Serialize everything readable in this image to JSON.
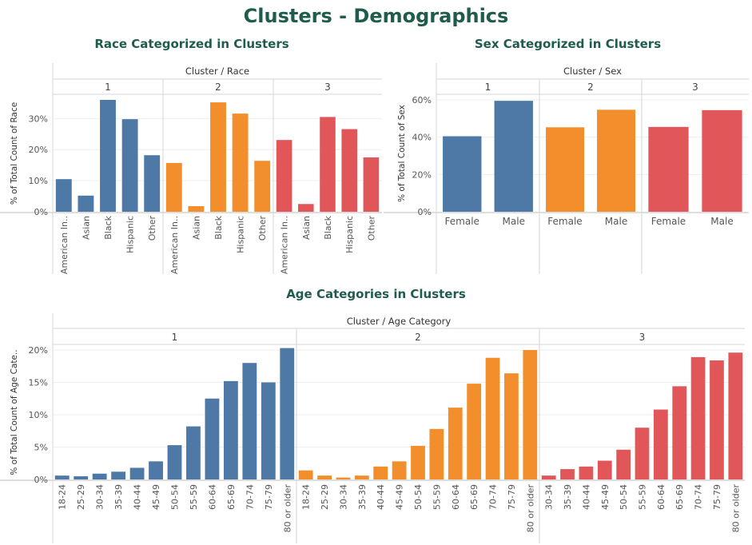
{
  "dashboard": {
    "title": "Clusters - Demographics",
    "colors": {
      "1": "#4e79a7",
      "2": "#f28e2b",
      "3": "#e15759"
    }
  },
  "chart_data": [
    {
      "id": "race",
      "type": "bar",
      "title": "Race Categorized in Clusters",
      "header": "Cluster / Race",
      "ylabel": "% of Total Count of Race",
      "ylim": [
        0,
        36
      ],
      "yticks": [
        0,
        10,
        20,
        30
      ],
      "tick_format": "pct",
      "panels": [
        {
          "cluster": "1",
          "categories": [
            "American In..",
            "Asian",
            "Black",
            "Hispanic",
            "Other"
          ],
          "values": [
            10.5,
            5.2,
            36.0,
            29.8,
            18.2
          ]
        },
        {
          "cluster": "2",
          "categories": [
            "American In..",
            "Asian",
            "Black",
            "Hispanic",
            "Other"
          ],
          "values": [
            15.7,
            1.8,
            35.2,
            31.6,
            16.4
          ]
        },
        {
          "cluster": "3",
          "categories": [
            "American In..",
            "Asian",
            "Black",
            "Hispanic",
            "Other"
          ],
          "values": [
            23.1,
            2.5,
            30.5,
            26.6,
            17.5
          ]
        }
      ]
    },
    {
      "id": "sex",
      "type": "bar",
      "title": "Sex Categorized in Clusters",
      "header": "Cluster / Sex",
      "ylabel": "% of Total Count of Sex",
      "ylim": [
        0,
        60
      ],
      "yticks": [
        0,
        20,
        40,
        60
      ],
      "tick_format": "pct",
      "panels": [
        {
          "cluster": "1",
          "categories": [
            "Female",
            "Male"
          ],
          "values": [
            40.5,
            59.5
          ]
        },
        {
          "cluster": "2",
          "categories": [
            "Female",
            "Male"
          ],
          "values": [
            45.3,
            54.7
          ]
        },
        {
          "cluster": "3",
          "categories": [
            "Female",
            "Male"
          ],
          "values": [
            45.5,
            54.5
          ]
        }
      ]
    },
    {
      "id": "age",
      "type": "bar",
      "title": "Age Categories in Clusters",
      "header": "Cluster / Age Category",
      "ylabel": "% of Total Count of Age Cate..",
      "ylim": [
        0,
        20
      ],
      "yticks": [
        0,
        5,
        10,
        15,
        20
      ],
      "tick_format": "pct",
      "panels": [
        {
          "cluster": "1",
          "categories": [
            "18-24",
            "25-29",
            "30-34",
            "35-39",
            "40-44",
            "45-49",
            "50-54",
            "55-59",
            "60-64",
            "65-69",
            "70-74",
            "75-79",
            "80 or older"
          ],
          "values": [
            0.6,
            0.5,
            0.9,
            1.2,
            1.8,
            2.8,
            5.3,
            8.2,
            12.5,
            15.2,
            18.0,
            15.0,
            20.3
          ]
        },
        {
          "cluster": "2",
          "categories": [
            "18-24",
            "25-29",
            "30-34",
            "35-39",
            "40-44",
            "45-49",
            "50-54",
            "55-59",
            "60-64",
            "65-69",
            "70-74",
            "75-79",
            "80 or older"
          ],
          "values": [
            1.4,
            0.6,
            0.3,
            0.6,
            2.0,
            2.8,
            5.2,
            7.8,
            11.1,
            14.8,
            18.8,
            16.4,
            20.0
          ]
        },
        {
          "cluster": "3",
          "categories": [
            "30-34",
            "35-39",
            "40-44",
            "45-49",
            "50-54",
            "55-59",
            "60-64",
            "65-69",
            "70-74",
            "75-79",
            "80 or older"
          ],
          "values": [
            0.6,
            1.6,
            2.0,
            2.9,
            4.6,
            8.0,
            10.8,
            14.4,
            18.9,
            18.4,
            19.6
          ]
        }
      ]
    }
  ]
}
